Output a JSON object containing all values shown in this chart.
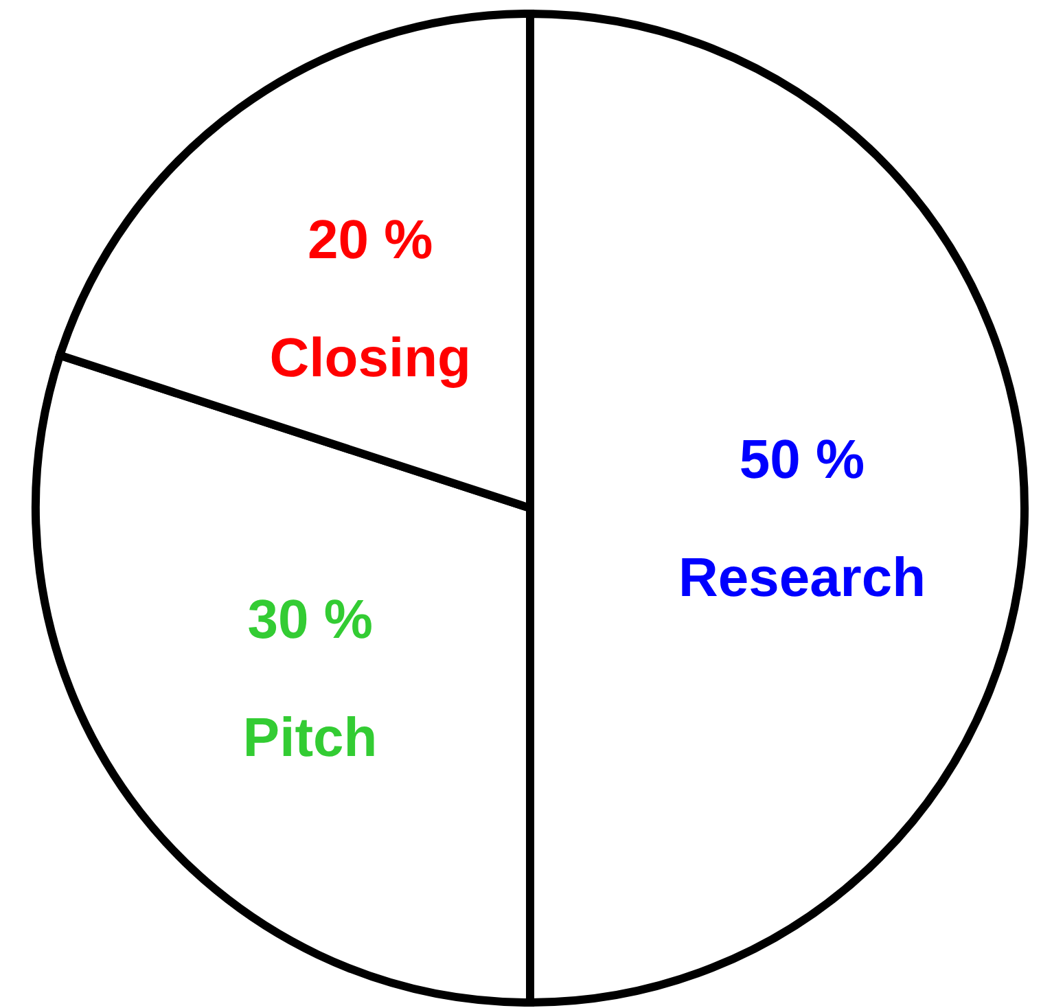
{
  "chart_data": {
    "type": "pie",
    "categories": [
      "Research",
      "Pitch",
      "Closing"
    ],
    "values": [
      50,
      30,
      20
    ],
    "colors": [
      "#ffffff",
      "#ffffff",
      "#ffffff"
    ],
    "value_labels": [
      "50 %",
      "30 %",
      "20 %"
    ],
    "legend": false
  }
}
